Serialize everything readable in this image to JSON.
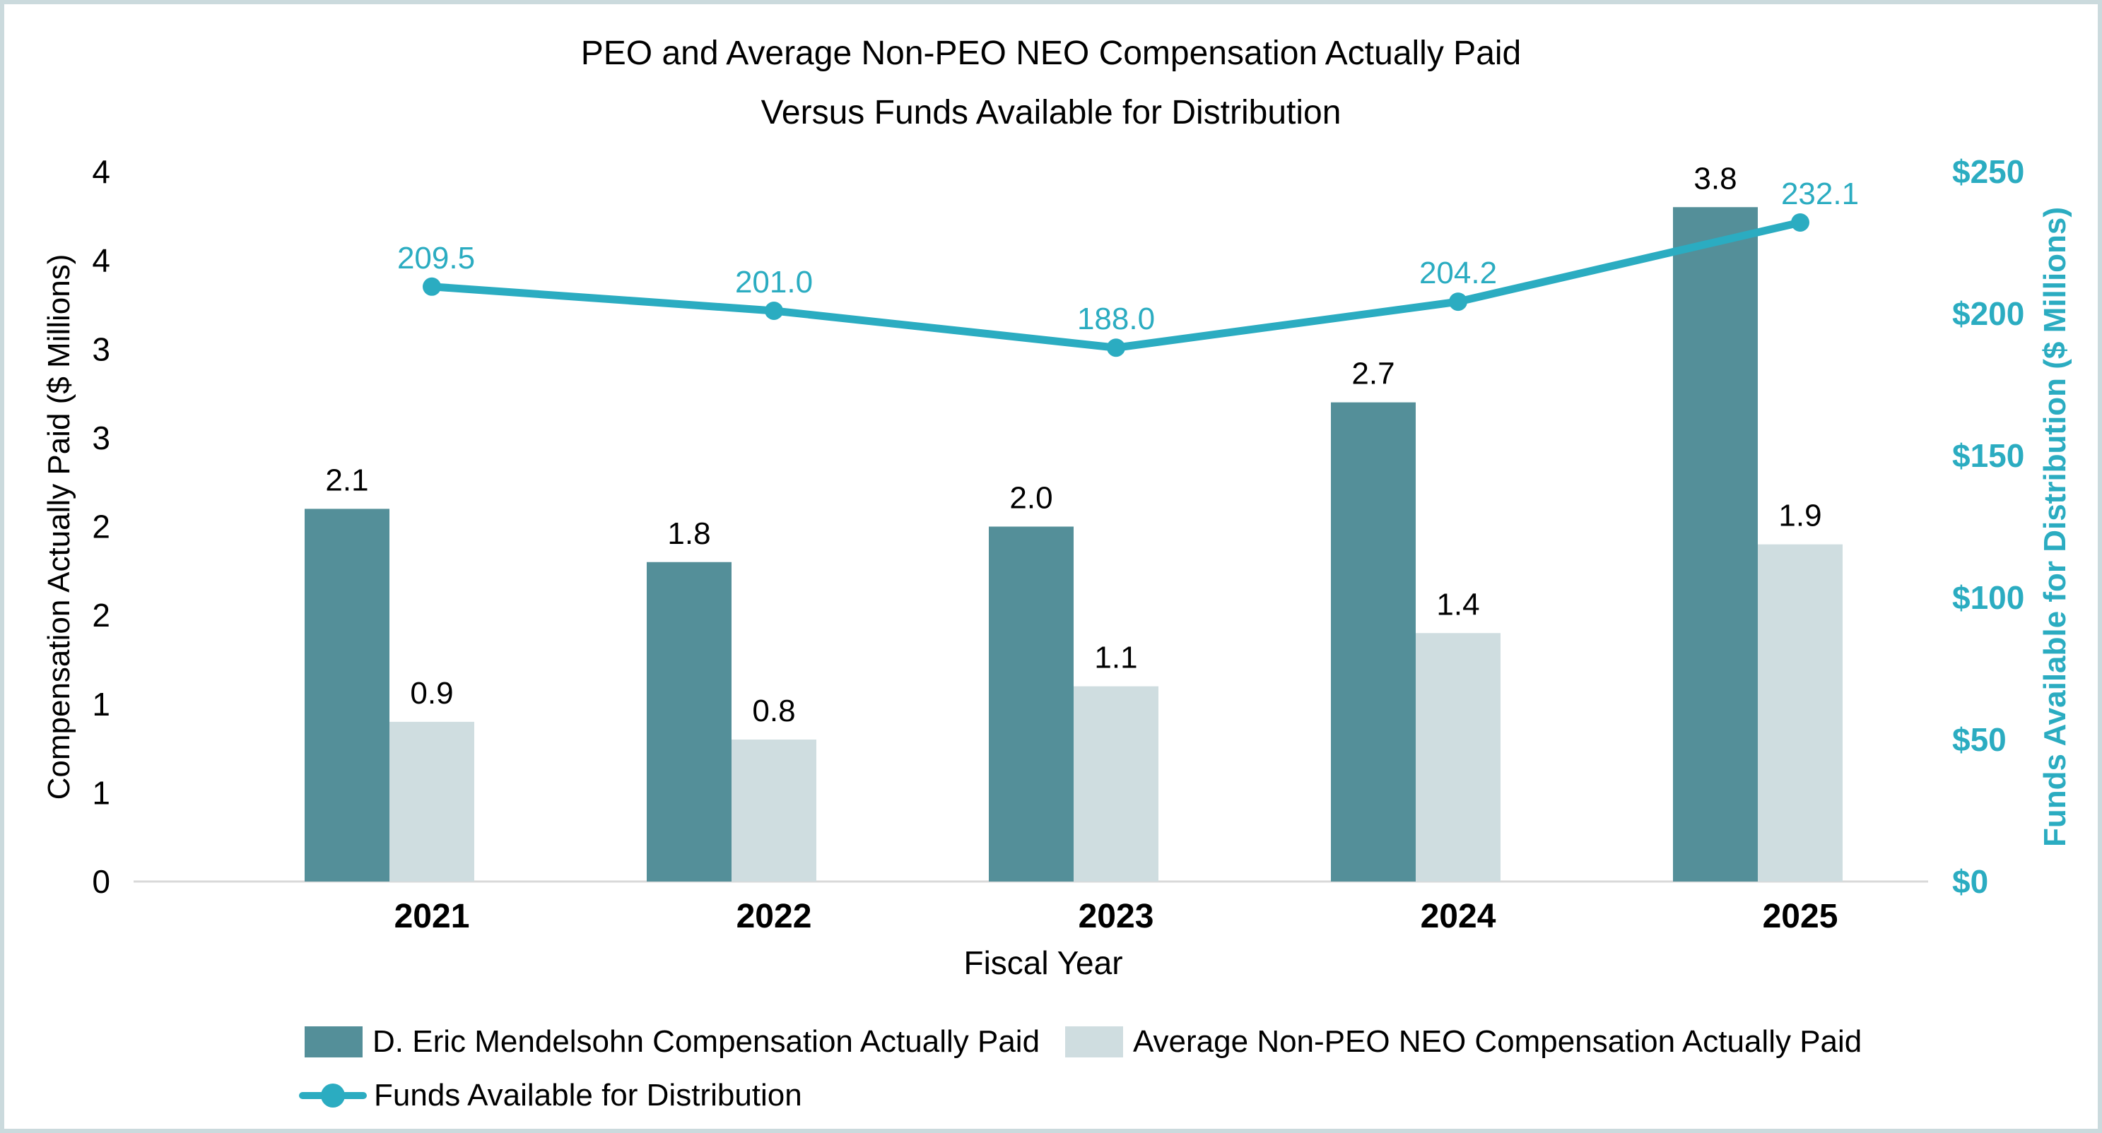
{
  "title": {
    "line1": "PEO and Average Non-PEO NEO Compensation Actually Paid",
    "line2": "Versus Funds Available for Distribution"
  },
  "chart_data": {
    "type": "combo",
    "title": "PEO and Average Non-PEO NEO Compensation Actually Paid Versus Funds Available for Distribution",
    "categories": [
      "2021",
      "2022",
      "2023",
      "2024",
      "2025"
    ],
    "series": [
      {
        "name": "D. Eric Mendelsohn Compensation Actually Paid",
        "type": "bar",
        "axis": "left",
        "color": "#548F99",
        "values": [
          2.1,
          1.8,
          2.0,
          2.7,
          3.8
        ],
        "value_labels": [
          "2.1",
          "1.8",
          "2.0",
          "2.7",
          "3.8"
        ]
      },
      {
        "name": "Average Non-PEO NEO Compensation Actually Paid",
        "type": "bar",
        "axis": "left",
        "color": "#CFDDE0",
        "values": [
          0.9,
          0.8,
          1.1,
          1.4,
          1.9
        ],
        "value_labels": [
          "0.9",
          "0.8",
          "1.1",
          "1.4",
          "1.9"
        ]
      },
      {
        "name": "Funds Available for Distribution",
        "type": "line",
        "axis": "right",
        "color": "#2BACC1",
        "values": [
          209.5,
          201.0,
          188.0,
          204.2,
          232.1
        ],
        "value_labels": [
          "209.5",
          "201.0",
          "188.0",
          "204.2",
          "232.1"
        ]
      }
    ],
    "left_axis": {
      "title": "Compensation Actually Paid ($ Millions)",
      "min": 0,
      "max": 4,
      "tick_step": 0.5,
      "tick_labels_bottom_up": [
        "0",
        "1",
        "1",
        "2",
        "2",
        "3",
        "3",
        "4",
        "4"
      ]
    },
    "right_axis": {
      "title": "Funds Available for Distribution ($ Millions)",
      "min": 0,
      "max": 250,
      "tick_step": 50,
      "tick_labels_bottom_up": [
        "$0",
        "$50",
        "$100",
        "$150",
        "$200",
        "$250"
      ]
    },
    "x_axis": {
      "title": "Fiscal Year"
    },
    "legend_position": "bottom",
    "grid": "off"
  },
  "colors": {
    "accent_teal": "#2BACC1",
    "bar_dark": "#548F99",
    "bar_light": "#CFDDE0",
    "axis_line": "#D9D9D9",
    "page_border": "#CBDADD",
    "text": "#000000"
  }
}
